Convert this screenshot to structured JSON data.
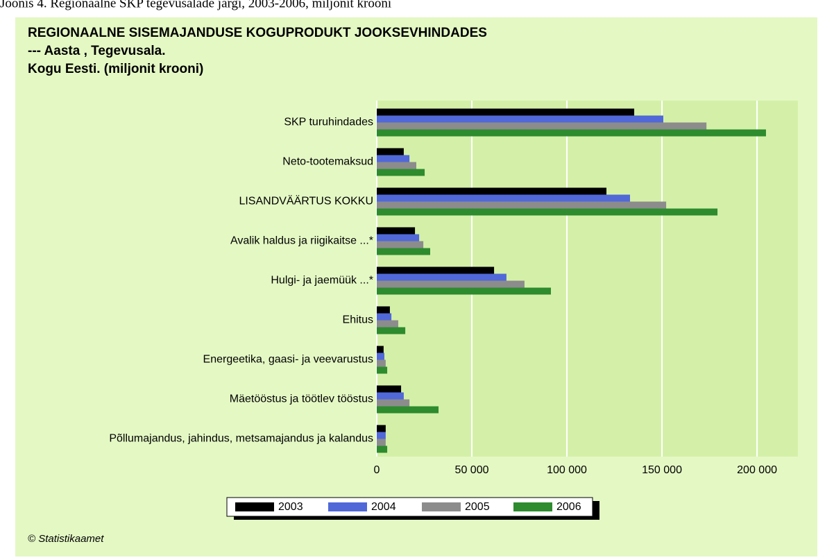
{
  "caption": "Joonis 4. Regionaalne SKP tegevusalade järgi, 2003-2006, miljonit krooni",
  "source": "© Statistikaamet",
  "chart_data": {
    "type": "hbar",
    "title": "REGIONAALNE SISEMAJANDUSE KOGUPRODUKT JOOKSEVHINDADES",
    "subtitle": [
      "--- Aasta , Tegevusala.",
      "Kogu Eesti. (miljonit krooni)"
    ],
    "categories": [
      "SKP turuhindades",
      "Neto-tootemaksud",
      "LISANDVÄÄRTUS KOKKU",
      "Avalik haldus ja riigikaitse ...*",
      "Hulgi- ja jaemüük ...*",
      "Ehitus",
      "Energeetika, gaasi- ja veevarustus",
      "Mäetööstus ja töötlev tööstus",
      "Põllumajandus, jahindus, metsamajandus ja kalandus"
    ],
    "series": [
      {
        "name": "2003",
        "color": "#000000",
        "values": [
          135400,
          14200,
          120800,
          20100,
          61700,
          6900,
          3600,
          12800,
          4700
        ]
      },
      {
        "name": "2004",
        "color": "#5068d8",
        "values": [
          150700,
          17200,
          133200,
          22300,
          68200,
          7700,
          4000,
          14200,
          4700
        ]
      },
      {
        "name": "2005",
        "color": "#8c8c8c",
        "values": [
          173400,
          20800,
          152200,
          24500,
          77700,
          11300,
          4700,
          17200,
          4700
        ]
      },
      {
        "name": "2006",
        "color": "#2e8b2e",
        "values": [
          204700,
          25200,
          179200,
          28100,
          91600,
          15000,
          5500,
          32500,
          5500
        ]
      }
    ],
    "xlim": [
      0,
      221500
    ],
    "xticks": [
      0,
      {
        "value": 50000,
        "label": "50 000"
      },
      {
        "value": 100000,
        "label": "100 000"
      },
      {
        "value": 150000,
        "label": "150 000"
      },
      {
        "value": 200000,
        "label": "200 000"
      }
    ],
    "grid": true
  }
}
